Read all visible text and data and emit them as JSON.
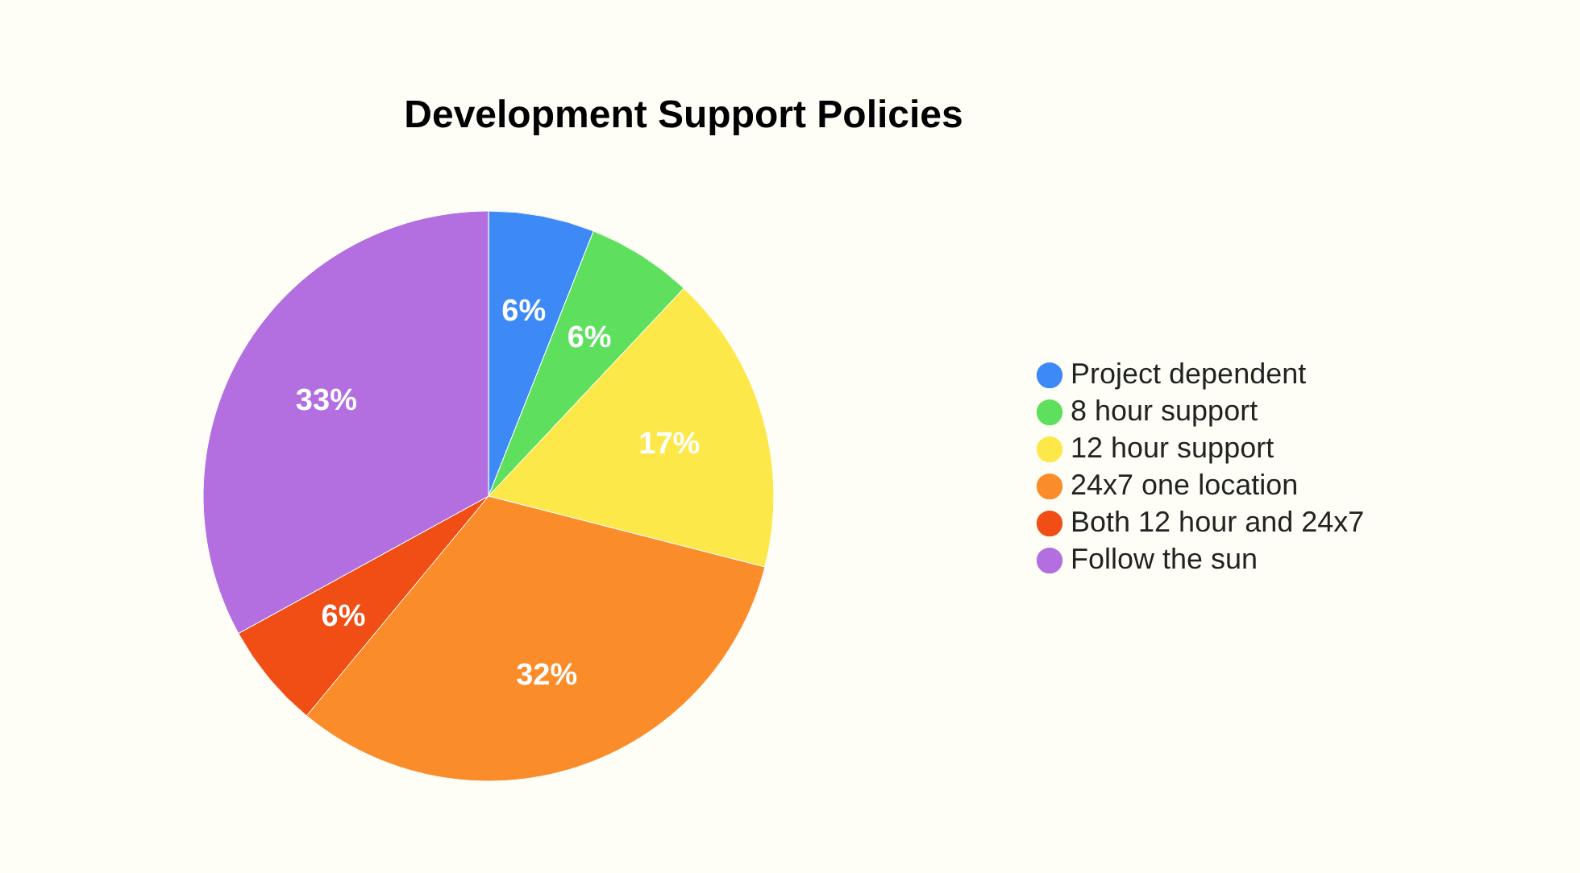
{
  "chart_data": {
    "type": "pie",
    "title": "Development Support Policies",
    "categories": [
      "Project dependent",
      "8 hour support",
      "12 hour support",
      "24x7 one location",
      "Both 12 hour and 24x7",
      "Follow the sun"
    ],
    "values": [
      6,
      6,
      17,
      32,
      6,
      33
    ],
    "value_labels": [
      "6%",
      "6%",
      "17%",
      "32%",
      "6%",
      "33%"
    ],
    "colors": [
      "#3d8af7",
      "#5ee05e",
      "#fde84a",
      "#fb8c2a",
      "#f04e14",
      "#b36fe0"
    ],
    "legend": "right"
  }
}
